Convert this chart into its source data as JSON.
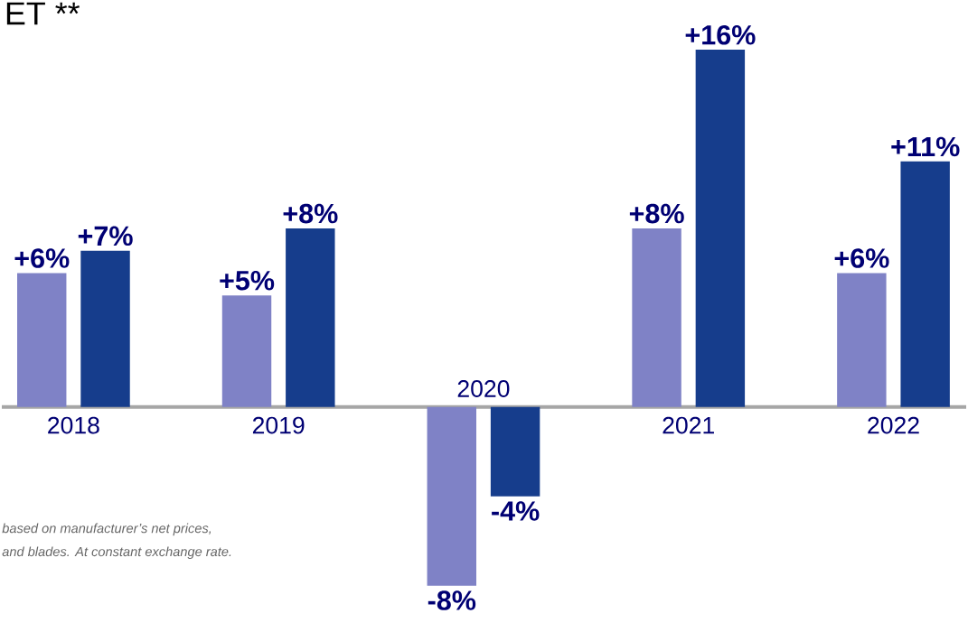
{
  "chart_data": {
    "type": "bar",
    "title": "ET **",
    "categories": [
      "2018",
      "2019",
      "2020",
      "2021",
      "2022"
    ],
    "series": [
      {
        "color": "#7f82c6",
        "values": [
          6,
          5,
          -8,
          8,
          6
        ],
        "value_labels": [
          "+6%",
          "+5%",
          "-8%",
          "+8%",
          "+6%"
        ]
      },
      {
        "color": "#163d8c",
        "values": [
          7,
          8,
          -4,
          16,
          11
        ],
        "value_labels": [
          "+7%",
          "+8%",
          "-4%",
          "+16%",
          "+11%"
        ]
      }
    ],
    "annotations": [
      "based on manufacturer’s net prices,",
      "and blades. At constant exchange rate."
    ]
  }
}
